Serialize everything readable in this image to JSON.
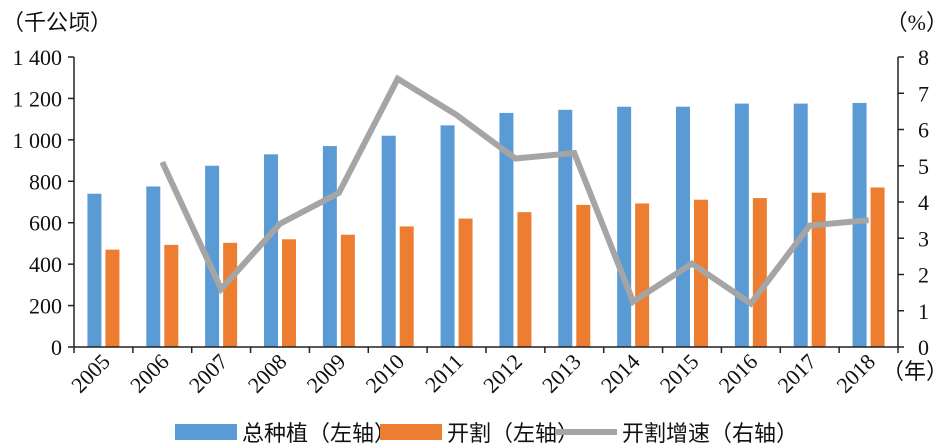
{
  "chart_data": {
    "type": "bar",
    "title": "",
    "xlabel": "（年）",
    "categories": [
      "2005",
      "2006",
      "2007",
      "2008",
      "2009",
      "2010",
      "2011",
      "2012",
      "2013",
      "2014",
      "2015",
      "2016",
      "2017",
      "2018"
    ],
    "y_left": {
      "unit_label": "（千公顷）",
      "ylim": [
        0,
        1400
      ],
      "ticks": [
        0,
        200,
        400,
        600,
        800,
        1000,
        1200,
        1400
      ],
      "tick_labels": [
        "0",
        "200",
        "400",
        "600",
        "800",
        "1 000",
        "1 200",
        "1 400"
      ]
    },
    "y_right": {
      "unit_label": "（%）",
      "ylim": [
        0,
        8
      ],
      "ticks": [
        0,
        1,
        2,
        3,
        4,
        5,
        6,
        7,
        8
      ],
      "tick_labels": [
        "0",
        "1",
        "2",
        "3",
        "4",
        "5",
        "6",
        "7",
        "8"
      ]
    },
    "series": [
      {
        "name": "总种植（左轴）",
        "type": "bar",
        "axis": "left",
        "color": "#5B9BD5",
        "values": [
          740,
          775,
          875,
          930,
          970,
          1020,
          1070,
          1130,
          1145,
          1160,
          1160,
          1175,
          1175,
          1178
        ]
      },
      {
        "name": "开割（左轴）",
        "type": "bar",
        "axis": "left",
        "color": "#ED7D31",
        "values": [
          470,
          493,
          503,
          520,
          542,
          582,
          620,
          651,
          686,
          693,
          711,
          719,
          745,
          770
        ]
      },
      {
        "name": "开割增速（右轴）",
        "type": "line",
        "axis": "right",
        "color": "#A5A5A5",
        "values": [
          null,
          5.1,
          1.6,
          3.4,
          4.25,
          7.4,
          6.4,
          5.2,
          5.35,
          1.25,
          2.3,
          1.2,
          3.35,
          3.5
        ]
      }
    ],
    "legend": {
      "position": "bottom",
      "items": [
        "总种植（左轴）",
        "开割（左轴）",
        "开割增速（右轴）"
      ]
    }
  }
}
